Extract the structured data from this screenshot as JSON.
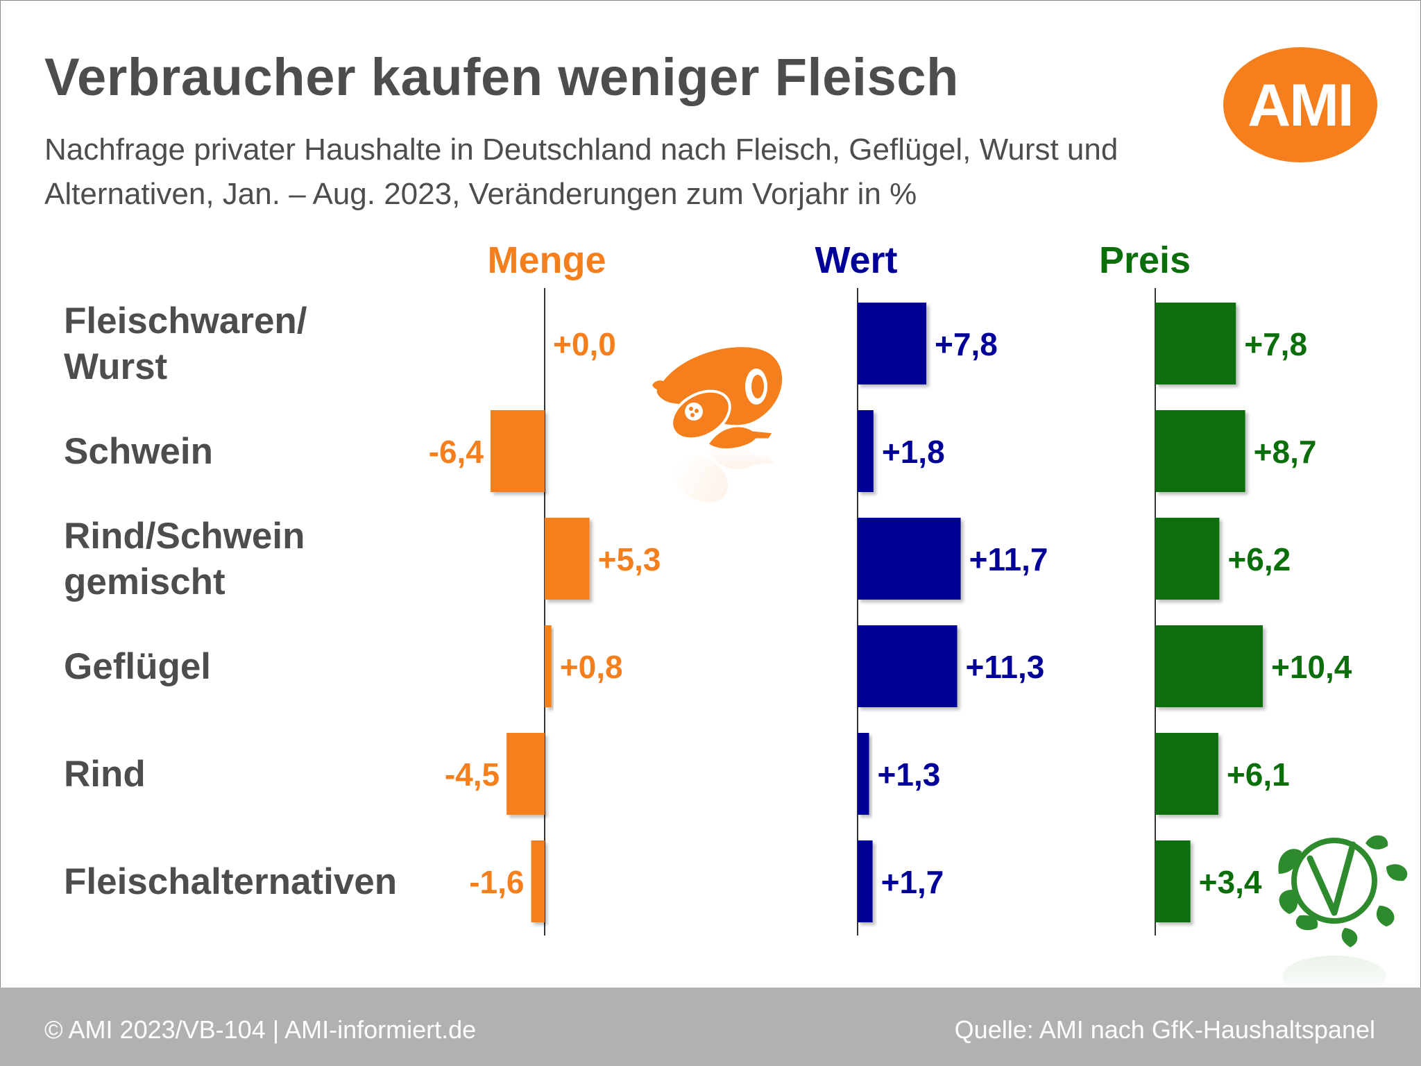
{
  "header": {
    "title": "Verbraucher kaufen weniger Fleisch",
    "subtitle": "Nachfrage privater Haushalte in Deutschland nach Fleisch, Geflügel, Wurst und Alternativen, Jan. – Aug. 2023, Veränderungen zum Vorjahr in %"
  },
  "logo": {
    "text": "AMI",
    "color": "#f57f1c"
  },
  "footer": {
    "left": "© AMI 2023/VB-104 | AMI-informiert.de",
    "right": "Quelle: AMI nach GfK-Haushaltspanel"
  },
  "icons": [
    "meat-icon",
    "vegan-leaf-icon"
  ],
  "chart_data": {
    "type": "bar",
    "orientation": "horizontal",
    "categories": [
      [
        "Fleischwaren/",
        "Wurst"
      ],
      [
        "Schwein"
      ],
      [
        "Rind/Schwein",
        "gemischt"
      ],
      [
        "Geflügel"
      ],
      [
        "Rind"
      ],
      [
        "Fleischalternativen"
      ]
    ],
    "series": [
      {
        "name": "Menge",
        "color": "#f57f1c",
        "values": [
          0.0,
          -6.4,
          5.3,
          0.8,
          -4.5,
          -1.6
        ],
        "labels": [
          "+0,0",
          "-6,4",
          "+5,3",
          "+0,8",
          "-4,5",
          "-1,6"
        ]
      },
      {
        "name": "Wert",
        "color": "#000099",
        "values": [
          7.8,
          1.8,
          11.7,
          11.3,
          1.3,
          1.7
        ],
        "labels": [
          "+7,8",
          "+1,8",
          "+11,7",
          "+11,3",
          "+1,3",
          "+1,7"
        ]
      },
      {
        "name": "Preis",
        "color": "#0a6e0a",
        "values": [
          7.8,
          8.7,
          6.2,
          10.4,
          6.1,
          3.4
        ],
        "labels": [
          "+7,8",
          "+8,7",
          "+6,2",
          "+10,4",
          "+6,1",
          "+3,4"
        ]
      }
    ],
    "unit": "%",
    "grid": false,
    "legend": "none"
  }
}
